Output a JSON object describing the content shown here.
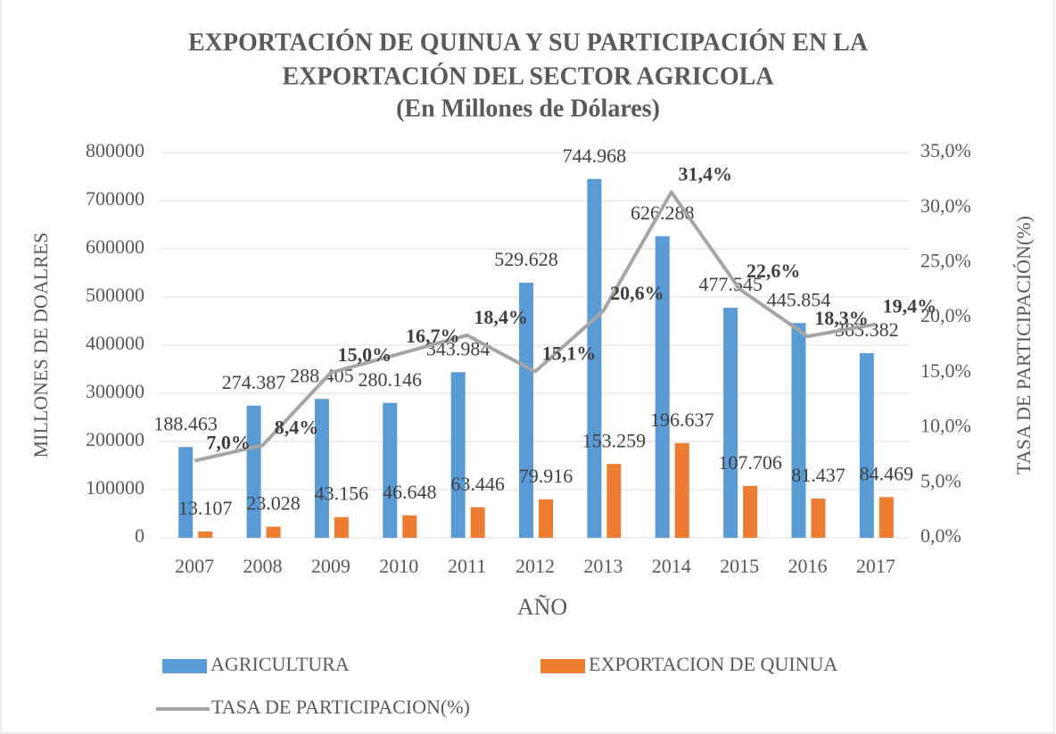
{
  "chart_data": {
    "type": "bar",
    "title": "EXPORTACIÓN DE QUINUA Y SU PARTICIPACIÓN EN LA",
    "title_line2": "EXPORTACIÓN DEL SECTOR AGRICOLA",
    "subtitle": "(En Millones de Dólares)",
    "x_label": "AÑO",
    "y_label": "MILLONES DE DOALRES",
    "y2_label": "TASA DE PARTICIPACIÓN(%)",
    "categories": [
      "2007",
      "2008",
      "2009",
      "2010",
      "2011",
      "2012",
      "2013",
      "2014",
      "2015",
      "2016",
      "2017"
    ],
    "ylim": [
      0,
      800000
    ],
    "yticks": [
      0,
      100000,
      200000,
      300000,
      400000,
      500000,
      600000,
      700000,
      800000
    ],
    "y2lim": [
      0,
      35
    ],
    "y2ticks": [
      {
        "value": 0,
        "label": "0,0%"
      },
      {
        "value": 5,
        "label": "5,0%"
      },
      {
        "value": 10,
        "label": "10,0%"
      },
      {
        "value": 15,
        "label": "15,0%"
      },
      {
        "value": 20,
        "label": "20,0%"
      },
      {
        "value": 25,
        "label": "25,0%"
      },
      {
        "value": 30,
        "label": "30,0%"
      },
      {
        "value": 35,
        "label": "35,0%"
      }
    ],
    "grid": true,
    "legend": "bottom",
    "series": [
      {
        "name": "AGRICULTURA",
        "type": "bar",
        "color": "#5b9bd5",
        "values": [
          188463,
          274387,
          288405,
          280146,
          343984,
          529628,
          744968,
          626288,
          477545,
          445854,
          383382
        ],
        "value_labels": [
          "188.463",
          "274.387",
          "288.405",
          "280.146",
          "343.984",
          "529.628",
          "744.968",
          "626.288",
          "477.545",
          "445.854",
          "383.382"
        ]
      },
      {
        "name": "EXPORTACION DE QUINUA",
        "type": "bar",
        "color": "#ed7d31",
        "values": [
          13107,
          23028,
          43156,
          46648,
          63446,
          79916,
          153259,
          196637,
          107706,
          81437,
          84469
        ],
        "value_labels": [
          "13.107",
          "23.028",
          "43.156",
          "46.648",
          "63.446",
          "79.916",
          "153.259",
          "196.637",
          "107.706",
          "81.437",
          "84.469"
        ]
      },
      {
        "name": "TASA DE PARTICIPACION(%)",
        "type": "line",
        "axis": "y2",
        "color": "#a5a5a5",
        "values": [
          7.0,
          8.4,
          15.0,
          16.7,
          18.4,
          15.1,
          20.6,
          31.4,
          22.6,
          18.3,
          19.4
        ],
        "value_labels": [
          "7,0%",
          "8,4%",
          "15,0%",
          "16,7%",
          "18,4%",
          "15,1%",
          "20,6%",
          "31,4%",
          "22,6%",
          "18,3%",
          "19,4%"
        ]
      }
    ]
  }
}
